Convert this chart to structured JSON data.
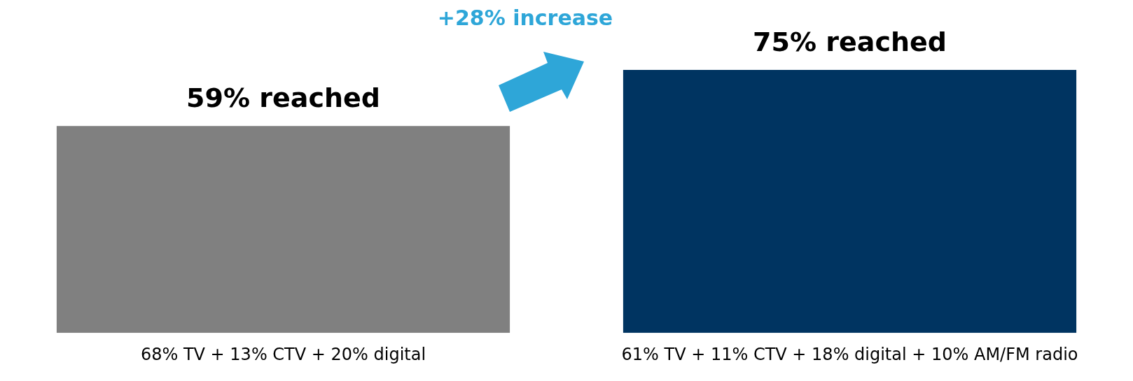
{
  "chart_data": {
    "type": "bar",
    "categories": [
      "68% TV + 13% CTV + 20% digital",
      "61% TV + 11% CTV + 18% digital + 10% AM/FM radio"
    ],
    "values": [
      59,
      75
    ],
    "colors": [
      "#808080",
      "#003461"
    ],
    "value_labels": [
      "59% reached",
      "75% reached"
    ],
    "annotations": [
      "+28% increase"
    ],
    "grid": false,
    "legend": false,
    "tick_labels": "x"
  }
}
